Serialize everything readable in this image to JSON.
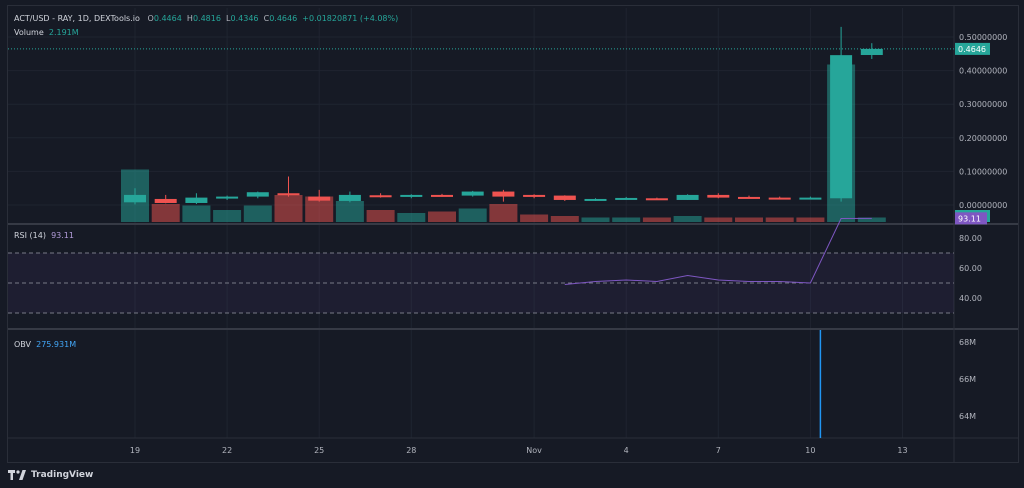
{
  "legend": {
    "symbol": "ACT/USD - RAY, 1D, DEXTools.io",
    "o_label": "O",
    "o": "0.4464",
    "h_label": "H",
    "h": "0.4816",
    "l_label": "L",
    "l": "0.4346",
    "c_label": "C",
    "c": "0.4646",
    "change": "+0.01820871 (+4.08%)",
    "volume_label": "Volume",
    "volume": "2.191M"
  },
  "rsi": {
    "label": "RSI (14)",
    "value": "93.11",
    "badge": "93.11",
    "ticks": [
      "80.00",
      "60.00",
      "40.00"
    ]
  },
  "obv": {
    "label": "OBV",
    "value": "275.931M",
    "ticks": [
      "68M",
      "66M",
      "64M"
    ]
  },
  "price": {
    "ticks": [
      "0.50000000",
      "0.40000000",
      "0.30000000",
      "0.20000000",
      "0.10000000",
      "0.00000000"
    ],
    "last_badge": "0.4646",
    "volume_badge": "2.191M"
  },
  "x_ticks": [
    "19",
    "22",
    "25",
    "28",
    "Nov",
    "4",
    "7",
    "10",
    "13"
  ],
  "branding": {
    "logo": "tradingview-logo",
    "text": "TradingView"
  },
  "colors": {
    "background": "#161a25",
    "grid": "#1f2430",
    "up": "#26a69a",
    "down": "#ef5350",
    "rsi_line": "#7e57c2",
    "rsi_band": "#7e57c2",
    "obv_line": "#2196f3",
    "text": "#b2b5be"
  },
  "chart_data": {
    "type": "candlestick",
    "panes": [
      "price+volume",
      "RSI (14)",
      "OBV"
    ],
    "candles": [
      {
        "date": "Oct 19",
        "o": 0.008,
        "h": 0.05,
        "l": 0.002,
        "c": 0.03
      },
      {
        "date": "Oct 20",
        "o": 0.018,
        "h": 0.03,
        "l": 0.005,
        "c": 0.006
      },
      {
        "date": "Oct 21",
        "o": 0.006,
        "h": 0.035,
        "l": 0.003,
        "c": 0.022
      },
      {
        "date": "Oct 22",
        "o": 0.02,
        "h": 0.028,
        "l": 0.015,
        "c": 0.025
      },
      {
        "date": "Oct 23",
        "o": 0.025,
        "h": 0.04,
        "l": 0.02,
        "c": 0.038
      },
      {
        "date": "Oct 24",
        "o": 0.035,
        "h": 0.085,
        "l": 0.025,
        "c": 0.03
      },
      {
        "date": "Oct 25",
        "o": 0.025,
        "h": 0.045,
        "l": 0.01,
        "c": 0.013
      },
      {
        "date": "Oct 26",
        "o": 0.012,
        "h": 0.04,
        "l": 0.008,
        "c": 0.03
      },
      {
        "date": "Oct 27",
        "o": 0.029,
        "h": 0.035,
        "l": 0.022,
        "c": 0.025
      },
      {
        "date": "Oct 28",
        "o": 0.025,
        "h": 0.032,
        "l": 0.02,
        "c": 0.03
      },
      {
        "date": "Oct 29",
        "o": 0.03,
        "h": 0.033,
        "l": 0.025,
        "c": 0.027
      },
      {
        "date": "Oct 30",
        "o": 0.028,
        "h": 0.042,
        "l": 0.025,
        "c": 0.04
      },
      {
        "date": "Oct 31",
        "o": 0.04,
        "h": 0.045,
        "l": 0.01,
        "c": 0.025
      },
      {
        "date": "Nov 1",
        "o": 0.03,
        "h": 0.032,
        "l": 0.02,
        "c": 0.025
      },
      {
        "date": "Nov 2",
        "o": 0.028,
        "h": 0.029,
        "l": 0.012,
        "c": 0.015
      },
      {
        "date": "Nov 3",
        "o": 0.014,
        "h": 0.02,
        "l": 0.012,
        "c": 0.018
      },
      {
        "date": "Nov 4",
        "o": 0.02,
        "h": 0.024,
        "l": 0.018,
        "c": 0.021
      },
      {
        "date": "Nov 5",
        "o": 0.02,
        "h": 0.022,
        "l": 0.017,
        "c": 0.018
      },
      {
        "date": "Nov 6",
        "o": 0.015,
        "h": 0.032,
        "l": 0.015,
        "c": 0.03
      },
      {
        "date": "Nov 7",
        "o": 0.03,
        "h": 0.035,
        "l": 0.02,
        "c": 0.022
      },
      {
        "date": "Nov 8",
        "o": 0.024,
        "h": 0.028,
        "l": 0.02,
        "c": 0.022
      },
      {
        "date": "Nov 9",
        "o": 0.022,
        "h": 0.025,
        "l": 0.02,
        "c": 0.021
      },
      {
        "date": "Nov 10",
        "o": 0.021,
        "h": 0.025,
        "l": 0.018,
        "c": 0.022
      },
      {
        "date": "Nov 11",
        "o": 0.02,
        "h": 0.53,
        "l": 0.01,
        "c": 0.446
      },
      {
        "date": "Nov 12",
        "o": 0.4464,
        "h": 0.4816,
        "l": 0.4346,
        "c": 0.4646
      }
    ],
    "volume": [
      {
        "date": "Oct 19",
        "v": 0.035,
        "dir": "up"
      },
      {
        "date": "Oct 20",
        "v": 0.012,
        "dir": "down"
      },
      {
        "date": "Oct 21",
        "v": 0.011,
        "dir": "up"
      },
      {
        "date": "Oct 22",
        "v": 0.008,
        "dir": "up"
      },
      {
        "date": "Oct 23",
        "v": 0.011,
        "dir": "up"
      },
      {
        "date": "Oct 24",
        "v": 0.018,
        "dir": "down"
      },
      {
        "date": "Oct 25",
        "v": 0.017,
        "dir": "down"
      },
      {
        "date": "Oct 26",
        "v": 0.014,
        "dir": "up"
      },
      {
        "date": "Oct 27",
        "v": 0.008,
        "dir": "down"
      },
      {
        "date": "Oct 28",
        "v": 0.006,
        "dir": "up"
      },
      {
        "date": "Oct 29",
        "v": 0.007,
        "dir": "down"
      },
      {
        "date": "Oct 30",
        "v": 0.009,
        "dir": "up"
      },
      {
        "date": "Oct 31",
        "v": 0.012,
        "dir": "down"
      },
      {
        "date": "Nov 1",
        "v": 0.005,
        "dir": "down"
      },
      {
        "date": "Nov 2",
        "v": 0.004,
        "dir": "down"
      },
      {
        "date": "Nov 3",
        "v": 0.003,
        "dir": "up"
      },
      {
        "date": "Nov 4",
        "v": 0.003,
        "dir": "up"
      },
      {
        "date": "Nov 5",
        "v": 0.003,
        "dir": "down"
      },
      {
        "date": "Nov 6",
        "v": 0.004,
        "dir": "up"
      },
      {
        "date": "Nov 7",
        "v": 0.003,
        "dir": "down"
      },
      {
        "date": "Nov 8",
        "v": 0.003,
        "dir": "down"
      },
      {
        "date": "Nov 9",
        "v": 0.003,
        "dir": "down"
      },
      {
        "date": "Nov 10",
        "v": 0.003,
        "dir": "down"
      },
      {
        "date": "Nov 11",
        "v": 0.105,
        "dir": "up"
      },
      {
        "date": "Nov 12",
        "v": 0.003,
        "dir": "up"
      }
    ],
    "rsi": [
      {
        "date": "Nov 2",
        "v": 49
      },
      {
        "date": "Nov 3",
        "v": 51
      },
      {
        "date": "Nov 4",
        "v": 52
      },
      {
        "date": "Nov 5",
        "v": 51
      },
      {
        "date": "Nov 6",
        "v": 55
      },
      {
        "date": "Nov 7",
        "v": 52
      },
      {
        "date": "Nov 8",
        "v": 51
      },
      {
        "date": "Nov 9",
        "v": 51
      },
      {
        "date": "Nov 10",
        "v": 50
      },
      {
        "date": "Nov 11",
        "v": 93
      },
      {
        "date": "Nov 12",
        "v": 93.11
      }
    ],
    "rsi_levels": [
      70,
      50,
      30
    ],
    "obv_spike_date": "Nov 10"
  }
}
